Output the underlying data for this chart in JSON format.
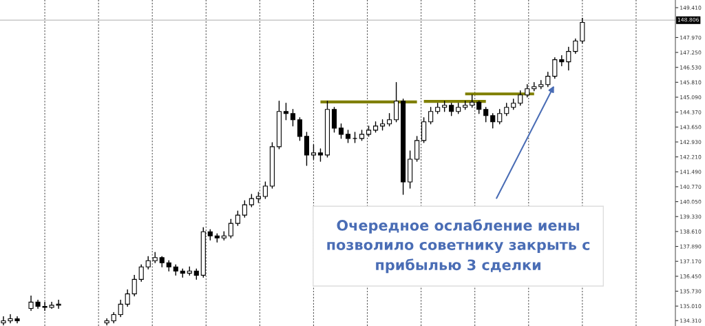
{
  "chart_data": {
    "type": "candlestick",
    "color": "#000000",
    "categories": [
      null,
      null,
      null,
      null,
      null,
      null,
      null,
      null,
      null,
      null,
      null,
      null,
      null,
      null,
      null,
      null,
      null,
      null,
      null,
      null,
      null,
      null,
      null,
      null,
      null,
      null,
      null,
      null,
      null,
      null,
      null,
      null,
      null,
      null,
      null,
      null,
      null,
      null,
      null,
      null,
      null,
      null,
      null,
      null,
      null,
      null,
      null,
      null,
      null,
      null,
      null,
      null,
      null,
      null,
      null,
      null,
      null,
      null,
      null,
      null,
      null,
      null,
      null,
      null,
      null,
      null,
      null,
      null,
      null,
      null,
      null,
      null,
      null,
      null,
      null,
      null,
      null,
      null,
      null,
      null,
      null,
      null,
      null,
      null,
      null,
      null,
      null,
      null,
      null,
      null,
      null,
      null,
      null,
      null,
      null,
      null,
      null,
      null
    ],
    "ohlc": [
      [
        134.2,
        134.5,
        134.1,
        134.3
      ],
      [
        134.3,
        134.6,
        134.2,
        134.4
      ],
      [
        134.4,
        134.5,
        134.2,
        134.3
      ],
      null,
      [
        134.9,
        135.5,
        134.8,
        135.2
      ],
      [
        135.2,
        135.3,
        134.9,
        135.0
      ],
      [
        135.0,
        135.2,
        134.8,
        134.95
      ],
      [
        134.95,
        135.2,
        134.9,
        135.05
      ],
      [
        135.05,
        135.3,
        134.9,
        135.1
      ],
      null,
      null,
      null,
      null,
      null,
      null,
      [
        134.2,
        134.4,
        134.1,
        134.3
      ],
      [
        134.3,
        134.7,
        134.2,
        134.6
      ],
      [
        134.6,
        135.3,
        134.5,
        135.1
      ],
      [
        135.1,
        135.8,
        135.0,
        135.6
      ],
      [
        135.6,
        136.5,
        135.5,
        136.3
      ],
      [
        136.3,
        137.0,
        136.2,
        136.9
      ],
      [
        136.9,
        137.4,
        136.8,
        137.2
      ],
      [
        137.2,
        137.6,
        137.1,
        137.35
      ],
      [
        137.35,
        137.4,
        136.9,
        137.1
      ],
      [
        137.1,
        137.2,
        136.7,
        136.9
      ],
      [
        136.9,
        137.0,
        136.5,
        136.7
      ],
      [
        136.7,
        136.8,
        136.4,
        136.6
      ],
      [
        136.6,
        136.9,
        136.5,
        136.7
      ],
      [
        136.7,
        136.8,
        136.3,
        136.5
      ],
      [
        136.5,
        138.8,
        136.4,
        138.6
      ],
      [
        138.6,
        138.7,
        138.2,
        138.4
      ],
      [
        138.4,
        138.5,
        138.1,
        138.3
      ],
      [
        138.3,
        138.6,
        138.2,
        138.4
      ],
      [
        138.4,
        139.2,
        138.3,
        139.0
      ],
      [
        139.0,
        139.6,
        138.9,
        139.4
      ],
      [
        139.4,
        140.1,
        139.3,
        139.9
      ],
      [
        139.9,
        140.4,
        139.8,
        140.2
      ],
      [
        140.2,
        140.5,
        140.0,
        140.3
      ],
      [
        140.3,
        141.0,
        140.2,
        140.8
      ],
      [
        140.8,
        142.9,
        140.7,
        142.7
      ],
      [
        142.7,
        144.9,
        142.6,
        144.4
      ],
      [
        144.4,
        144.8,
        144.0,
        144.3
      ],
      [
        144.3,
        144.5,
        143.7,
        144.0
      ],
      [
        144.0,
        144.1,
        143.0,
        143.2
      ],
      [
        143.2,
        143.4,
        141.8,
        142.3
      ],
      [
        142.3,
        142.8,
        142.1,
        142.4
      ],
      [
        142.4,
        142.6,
        142.0,
        142.3
      ],
      [
        142.3,
        144.9,
        142.2,
        144.5
      ],
      [
        144.5,
        144.6,
        143.4,
        143.6
      ],
      [
        143.6,
        143.8,
        143.1,
        143.3
      ],
      [
        143.3,
        143.5,
        142.9,
        143.1
      ],
      [
        143.1,
        143.4,
        142.9,
        143.1
      ],
      [
        143.1,
        143.5,
        143.0,
        143.3
      ],
      [
        143.3,
        143.7,
        143.2,
        143.5
      ],
      [
        143.5,
        143.9,
        143.4,
        143.7
      ],
      [
        143.7,
        144.0,
        143.5,
        143.8
      ],
      [
        143.8,
        144.3,
        143.7,
        144.0
      ],
      [
        144.0,
        145.8,
        143.9,
        144.9
      ],
      [
        144.9,
        145.0,
        140.4,
        141.0
      ],
      [
        141.0,
        142.5,
        140.7,
        142.1
      ],
      [
        142.1,
        143.2,
        142.0,
        143.0
      ],
      [
        143.0,
        144.1,
        142.9,
        143.9
      ],
      [
        143.9,
        144.6,
        143.8,
        144.4
      ],
      [
        144.4,
        144.8,
        144.3,
        144.6
      ],
      [
        144.6,
        144.9,
        144.4,
        144.7
      ],
      [
        144.7,
        144.8,
        144.2,
        144.4
      ],
      [
        144.4,
        144.8,
        144.3,
        144.6
      ],
      [
        144.6,
        144.9,
        144.5,
        144.7
      ],
      [
        144.7,
        145.2,
        144.6,
        144.85
      ],
      [
        144.85,
        144.9,
        144.3,
        144.5
      ],
      [
        144.5,
        144.6,
        143.9,
        144.2
      ],
      [
        144.2,
        144.3,
        143.6,
        143.9
      ],
      [
        143.9,
        144.5,
        143.8,
        144.3
      ],
      [
        144.3,
        144.8,
        144.2,
        144.6
      ],
      [
        144.6,
        145.0,
        144.5,
        144.8
      ],
      [
        144.8,
        145.4,
        144.7,
        145.2
      ],
      [
        145.2,
        145.7,
        145.1,
        145.5
      ],
      [
        145.5,
        145.8,
        145.4,
        145.6
      ],
      [
        145.6,
        145.9,
        145.5,
        145.7
      ],
      [
        145.7,
        146.3,
        145.6,
        146.1
      ],
      [
        146.1,
        147.0,
        146.0,
        146.9
      ],
      [
        146.9,
        147.1,
        146.6,
        146.8
      ],
      [
        146.8,
        147.5,
        146.4,
        147.3
      ],
      [
        147.3,
        147.9,
        147.2,
        147.8
      ],
      [
        147.8,
        148.9,
        147.7,
        148.7
      ],
      null,
      null,
      null,
      null,
      null,
      null,
      null,
      null,
      null,
      null,
      null,
      null,
      null
    ],
    "series": [
      {
        "type": "line",
        "color": "#7f7f00",
        "values": [
          null,
          null,
          null,
          null,
          null,
          null,
          null,
          null,
          null,
          null,
          null,
          null,
          null,
          null,
          null,
          null,
          null,
          null,
          null,
          null,
          null,
          null,
          null,
          null,
          null,
          null,
          null,
          null,
          null,
          null,
          null,
          null,
          null,
          null,
          null,
          null,
          null,
          null,
          null,
          null,
          null,
          null,
          null,
          null,
          null,
          null,
          144.86,
          144.86,
          144.86,
          144.86,
          144.86,
          144.86,
          144.86,
          144.86,
          144.86,
          144.86,
          144.86,
          144.86,
          144.86,
          144.86,
          144.86,
          null,
          null,
          null,
          null,
          null,
          null,
          null,
          null,
          null,
          null,
          null,
          null,
          null,
          null,
          null,
          null,
          null,
          null,
          null,
          null,
          null,
          null,
          null,
          null,
          null,
          null,
          null,
          null,
          null,
          null,
          null,
          null,
          null,
          null,
          null,
          null,
          null
        ]
      },
      {
        "type": "line",
        "color": "#7f7f00",
        "values": [
          null,
          null,
          null,
          null,
          null,
          null,
          null,
          null,
          null,
          null,
          null,
          null,
          null,
          null,
          null,
          null,
          null,
          null,
          null,
          null,
          null,
          null,
          null,
          null,
          null,
          null,
          null,
          null,
          null,
          null,
          null,
          null,
          null,
          null,
          null,
          null,
          null,
          null,
          null,
          null,
          null,
          null,
          null,
          null,
          null,
          null,
          null,
          null,
          null,
          null,
          null,
          null,
          null,
          null,
          null,
          null,
          null,
          null,
          null,
          null,
          null,
          144.89,
          144.89,
          144.89,
          144.89,
          144.89,
          144.89,
          144.89,
          144.89,
          144.89,
          144.89,
          null,
          null,
          null,
          null,
          null,
          null,
          null,
          null,
          null,
          null,
          null,
          null,
          null,
          null,
          null,
          null,
          null,
          null,
          null,
          null,
          null,
          null,
          null,
          null,
          null,
          null,
          null
        ]
      },
      {
        "type": "line",
        "color": "#7f7f00",
        "values": [
          null,
          null,
          null,
          null,
          null,
          null,
          null,
          null,
          null,
          null,
          null,
          null,
          null,
          null,
          null,
          null,
          null,
          null,
          null,
          null,
          null,
          null,
          null,
          null,
          null,
          null,
          null,
          null,
          null,
          null,
          null,
          null,
          null,
          null,
          null,
          null,
          null,
          null,
          null,
          null,
          null,
          null,
          null,
          null,
          null,
          null,
          null,
          null,
          null,
          null,
          null,
          null,
          null,
          null,
          null,
          null,
          null,
          null,
          null,
          null,
          null,
          null,
          null,
          null,
          null,
          null,
          null,
          145.25,
          145.25,
          145.25,
          145.25,
          145.25,
          145.25,
          145.25,
          145.25,
          145.25,
          145.25,
          145.25,
          null,
          null,
          null,
          null,
          null,
          null,
          null,
          null,
          null,
          null,
          null,
          null,
          null,
          null,
          null,
          null,
          null,
          null,
          null,
          null
        ]
      }
    ],
    "ylim": [
      134.05,
      149.78
    ],
    "yticks": [
      {
        "value": 134.31,
        "label": "134.310"
      },
      {
        "value": 135.01,
        "label": "135.010"
      },
      {
        "value": 135.73,
        "label": "135.730"
      },
      {
        "value": 136.45,
        "label": "136.450"
      },
      {
        "value": 137.17,
        "label": "137.170"
      },
      {
        "value": 137.89,
        "label": "137.890"
      },
      {
        "value": 138.61,
        "label": "138.610"
      },
      {
        "value": 139.33,
        "label": "139.330"
      },
      {
        "value": 140.05,
        "label": "140.050"
      },
      {
        "value": 140.77,
        "label": "140.770"
      },
      {
        "value": 141.49,
        "label": "141.490"
      },
      {
        "value": 142.21,
        "label": "142.210"
      },
      {
        "value": 142.93,
        "label": "142.930"
      },
      {
        "value": 143.65,
        "label": "143.650"
      },
      {
        "value": 144.37,
        "label": "144.370"
      },
      {
        "value": 145.09,
        "label": "145.090"
      },
      {
        "value": 145.81,
        "label": "145.810"
      },
      {
        "value": 146.53,
        "label": "146.530"
      },
      {
        "value": 147.25,
        "label": "147.250"
      },
      {
        "value": 147.97,
        "label": "147.970"
      },
      {
        "value": 149.41,
        "label": "149.410"
      }
    ],
    "ref_lines": [
      {
        "axis": "y",
        "value": 148.806,
        "label": "148.806",
        "color": "#c8c8c8"
      }
    ],
    "grid": "x",
    "annotations": [
      "Очередное ослабление иены\nпозволило советнику закрыть с\nприбылью 3 сделки"
    ]
  }
}
